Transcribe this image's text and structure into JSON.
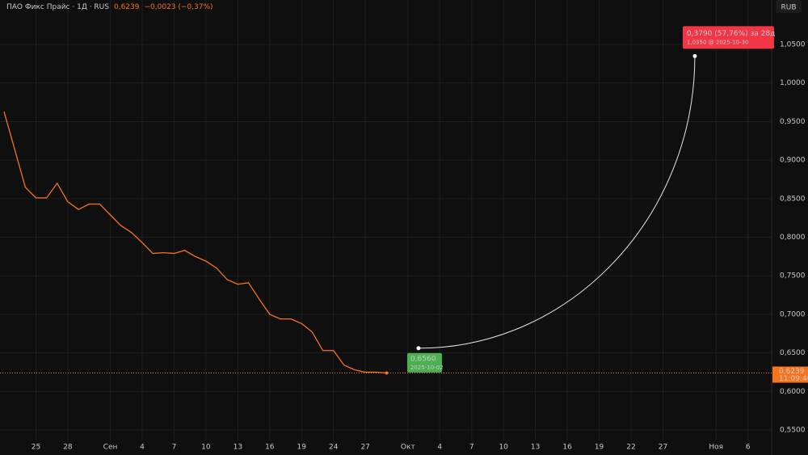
{
  "chart_data": {
    "type": "line",
    "title": "ПАО Фикс Прайс · 1Д · RUS",
    "last_price": "0,6239",
    "change": "−0,0023 (−0,37%)",
    "currency": "RUB",
    "price_tag": {
      "value": 0.6239,
      "label": "0,6239",
      "time": "11:09:40"
    },
    "xlim": [
      0,
      72
    ],
    "xticks": [
      {
        "value": 3,
        "label": "25"
      },
      {
        "value": 6,
        "label": "28"
      },
      {
        "value": 10,
        "label": "Сен"
      },
      {
        "value": 13,
        "label": "4"
      },
      {
        "value": 16,
        "label": "7"
      },
      {
        "value": 19,
        "label": "10"
      },
      {
        "value": 22,
        "label": "13"
      },
      {
        "value": 25,
        "label": "16"
      },
      {
        "value": 28,
        "label": "19"
      },
      {
        "value": 31,
        "label": "24"
      },
      {
        "value": 34,
        "label": "27"
      },
      {
        "value": 38,
        "label": "Окт"
      },
      {
        "value": 41,
        "label": "4"
      },
      {
        "value": 44,
        "label": "7"
      },
      {
        "value": 47,
        "label": "10"
      },
      {
        "value": 50,
        "label": "13"
      },
      {
        "value": 53,
        "label": "16"
      },
      {
        "value": 56,
        "label": "19"
      },
      {
        "value": 59,
        "label": "22"
      },
      {
        "value": 62,
        "label": "27"
      },
      {
        "value": 67,
        "label": "Ноя"
      },
      {
        "value": 70,
        "label": "6"
      }
    ],
    "ylim": [
      0.5364,
      1.1077
    ],
    "yticks": [
      {
        "value": 0.55,
        "label": "0,5500"
      },
      {
        "value": 0.6,
        "label": "0,6000"
      },
      {
        "value": 0.65,
        "label": "0,6500"
      },
      {
        "value": 0.7,
        "label": "0,7000"
      },
      {
        "value": 0.75,
        "label": "0,7500"
      },
      {
        "value": 0.8,
        "label": "0,8000"
      },
      {
        "value": 0.85,
        "label": "0,8500"
      },
      {
        "value": 0.9,
        "label": "0,9000"
      },
      {
        "value": 0.95,
        "label": "0,9500"
      },
      {
        "value": 1.0,
        "label": "1,0000"
      },
      {
        "value": 1.05,
        "label": "1,0500"
      }
    ],
    "grid": true,
    "series": [
      {
        "color": "#f7731c",
        "x": [
          0,
          2,
          3,
          4,
          5,
          6,
          7,
          8,
          9,
          10,
          11,
          12,
          13,
          14,
          15,
          16,
          17,
          18,
          19,
          20,
          21,
          22,
          23,
          24,
          25,
          26,
          27,
          28,
          29,
          30,
          31,
          32,
          33,
          34,
          35,
          36
        ],
        "values": [
          0.963,
          0.865,
          0.851,
          0.851,
          0.87,
          0.846,
          0.836,
          0.843,
          0.843,
          0.829,
          0.815,
          0.806,
          0.793,
          0.779,
          0.78,
          0.779,
          0.783,
          0.775,
          0.769,
          0.76,
          0.745,
          0.739,
          0.741,
          0.72,
          0.7,
          0.694,
          0.694,
          0.688,
          0.677,
          0.653,
          0.653,
          0.634,
          0.628,
          0.625,
          0.625,
          0.6239
        ]
      }
    ],
    "projection": {
      "x": [
        39,
        65
      ],
      "values": [
        0.656,
        1.035
      ],
      "start_label": "0,6560",
      "start_date": "2025-10-02",
      "end_label": "0,3790 (57,76%) за 28д",
      "end_detail": "1,0350 @ 2025-10-30"
    }
  }
}
